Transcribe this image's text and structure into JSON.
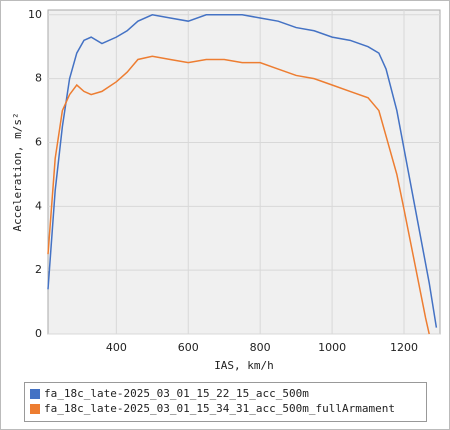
{
  "chart_data": {
    "type": "line",
    "x_label": "IAS, km/h",
    "y_label": "Acceleration, m/s²",
    "x": [
      210,
      230,
      250,
      270,
      290,
      310,
      330,
      360,
      400,
      430,
      460,
      500,
      550,
      600,
      650,
      700,
      750,
      800,
      850,
      900,
      950,
      1000,
      1050,
      1100,
      1130,
      1150,
      1180,
      1200,
      1230,
      1260,
      1270,
      1290
    ],
    "series": [
      {
        "name": "fa_18c_late-2025_03_01_15_22_15_acc_500m",
        "color": "#4472c4",
        "values": [
          1.4,
          4.5,
          6.5,
          8.0,
          8.8,
          9.2,
          9.3,
          9.1,
          9.3,
          9.5,
          9.8,
          10.0,
          9.9,
          9.8,
          10.0,
          10.0,
          10.0,
          9.9,
          9.8,
          9.6,
          9.5,
          9.3,
          9.2,
          9.0,
          8.8,
          8.3,
          7.0,
          5.8,
          4.0,
          2.2,
          1.6,
          0.2
        ]
      },
      {
        "name": "fa_18c_late-2025_03_01_15_34_31_acc_500m_fullArmament",
        "color": "#ed7d31",
        "values": [
          2.5,
          5.5,
          7.0,
          7.5,
          7.8,
          7.6,
          7.5,
          7.6,
          7.9,
          8.2,
          8.6,
          8.7,
          8.6,
          8.5,
          8.6,
          8.6,
          8.5,
          8.5,
          8.3,
          8.1,
          8.0,
          7.8,
          7.6,
          7.4,
          7.0,
          6.2,
          5.0,
          3.9,
          2.2,
          0.5,
          0,
          null
        ]
      }
    ],
    "xlim": [
      210,
      1300
    ],
    "ylim": [
      0,
      10.15
    ],
    "xticks": [
      400,
      600,
      800,
      1000,
      1200
    ],
    "yticks": [
      0,
      2,
      4,
      6,
      8,
      10
    ],
    "grid": true
  }
}
